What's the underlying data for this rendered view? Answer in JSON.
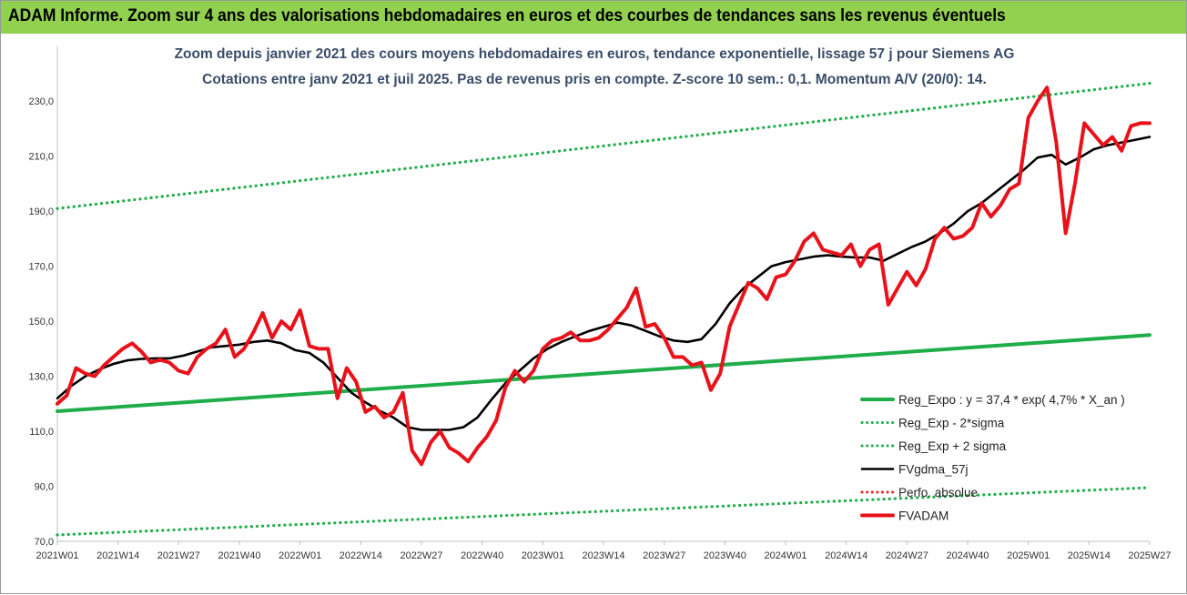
{
  "banner": {
    "title": "ADAM Informe. Zoom sur 4 ans des valorisations hebdomadaires en euros et des courbes de tendances sans les revenus éventuels",
    "background": "#92d050"
  },
  "chart_data": {
    "type": "line",
    "title_line1": "Zoom depuis janvier 2021 des cours moyens hebdomadaires en euros, tendance exponentielle, lissage 57 j pour Siemens AG",
    "title_line2": "Cotations entre janv 2021 et juil 2025. Pas de revenus pris en compte. Z-score 10 sem.: 0,1. Momentum A/V (20/0): 14.",
    "ylim": [
      70,
      240
    ],
    "y_ticks": [
      "70,0",
      "90,0",
      "110,0",
      "130,0",
      "150,0",
      "170,0",
      "190,0",
      "210,0",
      "230,0"
    ],
    "y_tick_values": [
      70,
      90,
      110,
      130,
      150,
      170,
      190,
      210,
      230
    ],
    "x_ticks": [
      "2021W01",
      "2021W14",
      "2021W27",
      "2021W40",
      "2022W01",
      "2022W14",
      "2022W27",
      "2022W40",
      "2023W01",
      "2023W14",
      "2023W27",
      "2023W40",
      "2024W01",
      "2024W14",
      "2024W27",
      "2024W40",
      "2025W01",
      "2025W14",
      "2025W27"
    ],
    "x_range_weeks": [
      0,
      234
    ],
    "grid": false,
    "legend_position": "bottom-right",
    "series": [
      {
        "name": "Reg_Expo : y = 37,4 * exp( 4,7% *  X_an )",
        "color": "#1fad4a",
        "style": "solid",
        "x": [
          0,
          234
        ],
        "y": [
          117.3,
          145.0
        ]
      },
      {
        "name": "Reg_Exp - 2*sigma",
        "color": "#1fad4a",
        "style": "dotted",
        "x": [
          0,
          234
        ],
        "y": [
          72.3,
          89.5
        ]
      },
      {
        "name": "Reg_Exp + 2 sigma",
        "color": "#1fad4a",
        "style": "dotted",
        "x": [
          0,
          234
        ],
        "y": [
          191.0,
          236.5
        ]
      },
      {
        "name": "FVgdma_57j",
        "color": "#000000",
        "style": "solid",
        "x": [
          0,
          3,
          6,
          9,
          12,
          15,
          18,
          21,
          24,
          27,
          30,
          33,
          36,
          39,
          42,
          45,
          48,
          51,
          54,
          57,
          60,
          63,
          66,
          69,
          72,
          75,
          78,
          81,
          84,
          87,
          90,
          93,
          96,
          99,
          102,
          105,
          108,
          111,
          114,
          117,
          120,
          123,
          126,
          129,
          132,
          135,
          138,
          141,
          144,
          147,
          150,
          153,
          156,
          159,
          162,
          165,
          168,
          171,
          174,
          177,
          180,
          183,
          186,
          189,
          192,
          195,
          198,
          201,
          204,
          207,
          210,
          213,
          216,
          219,
          222,
          225,
          228,
          231,
          234
        ],
        "y": [
          122,
          126.5,
          130,
          132.5,
          134.5,
          135.8,
          136.3,
          136.5,
          136.5,
          137.5,
          139,
          140.5,
          141,
          141.5,
          142.5,
          143,
          142,
          139.5,
          138.5,
          135,
          129.5,
          124,
          120.5,
          117.5,
          115,
          111.5,
          110.5,
          110.5,
          110.5,
          111.5,
          115,
          121.5,
          127.5,
          132,
          136.5,
          140,
          142.5,
          144.5,
          146.5,
          148,
          149.5,
          148.5,
          146.5,
          144.5,
          143,
          142.5,
          143.5,
          149,
          156.5,
          162,
          166,
          170,
          171.5,
          172.5,
          173.5,
          174,
          173.5,
          173.2,
          173.2,
          172,
          174.5,
          177,
          179,
          182,
          185.5,
          190,
          193,
          197,
          201,
          205,
          209.5,
          210.5,
          207,
          209.5,
          212.5,
          214,
          215,
          216,
          217
        ]
      },
      {
        "name": "Perfo. absolue",
        "color": "#e8262a",
        "style": "dotted",
        "x": [],
        "y": []
      },
      {
        "name": "FVADAM",
        "color": "#e8121b",
        "style": "solid",
        "x": [
          0,
          2,
          4,
          6,
          8,
          10,
          12,
          14,
          16,
          18,
          20,
          22,
          24,
          26,
          28,
          30,
          32,
          34,
          36,
          38,
          40,
          42,
          44,
          46,
          48,
          50,
          52,
          54,
          56,
          58,
          60,
          62,
          64,
          66,
          68,
          70,
          72,
          74,
          76,
          78,
          80,
          82,
          84,
          86,
          88,
          90,
          92,
          94,
          96,
          98,
          100,
          102,
          104,
          106,
          108,
          110,
          112,
          114,
          116,
          118,
          120,
          122,
          124,
          126,
          128,
          130,
          132,
          134,
          136,
          138,
          140,
          142,
          144,
          146,
          148,
          150,
          152,
          154,
          156,
          158,
          160,
          162,
          164,
          166,
          168,
          170,
          172,
          174,
          176,
          178,
          180,
          182,
          184,
          186,
          188,
          190,
          192,
          194,
          196,
          198,
          200,
          202,
          204,
          206,
          208,
          210,
          212,
          214,
          216,
          218,
          220,
          222,
          224,
          226,
          228,
          230,
          232,
          234
        ],
        "y": [
          120,
          123,
          133,
          131,
          130,
          134,
          137,
          140,
          142,
          139,
          135,
          136,
          135,
          132,
          131,
          137,
          140,
          142,
          147,
          137,
          140,
          146,
          153,
          144,
          150,
          147,
          154,
          141,
          140,
          140,
          122,
          133,
          128,
          117,
          119,
          115,
          117,
          124,
          103,
          98,
          106,
          110,
          104,
          102,
          99,
          104,
          108,
          114,
          126,
          132,
          128,
          132,
          140,
          143,
          144,
          146,
          143,
          143,
          144,
          147,
          151,
          155,
          162,
          148,
          149,
          144,
          137,
          137,
          134,
          135,
          125,
          131,
          148,
          156,
          164,
          162,
          158,
          166,
          167,
          172,
          179,
          182,
          176,
          175,
          174,
          178,
          170,
          176,
          178,
          156,
          162,
          168,
          163,
          169,
          180,
          184,
          180,
          181,
          184,
          193,
          188,
          192,
          198,
          200,
          224,
          230,
          235,
          215,
          182,
          200,
          222,
          218,
          214,
          217,
          212,
          221,
          222,
          222
        ]
      }
    ]
  }
}
